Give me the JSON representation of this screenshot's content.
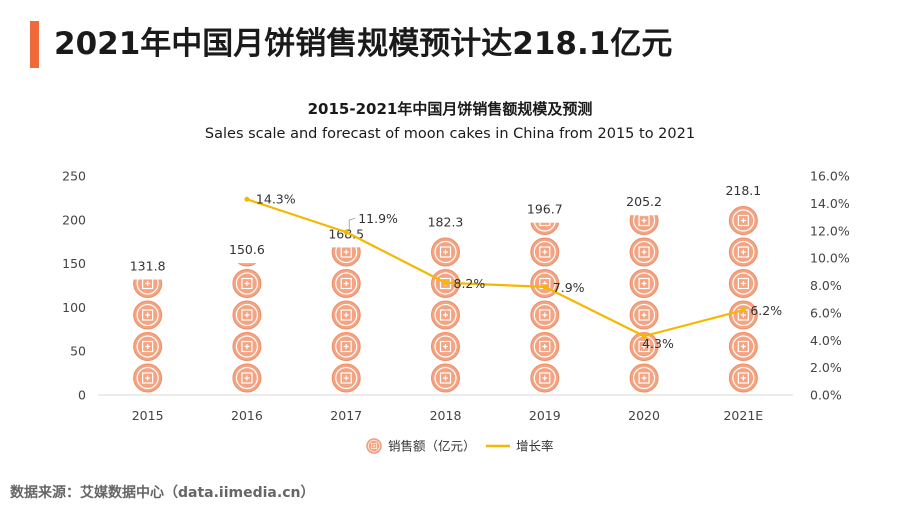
{
  "header": {
    "title": "2021年中国月饼销售规模预计达218.1亿元"
  },
  "chart_data": {
    "type": "bar",
    "title": "2015-2021年中国月饼销售额规模及预测",
    "subtitle": "Sales scale and forecast of moon cakes in China from 2015 to 2021",
    "categories": [
      "2015",
      "2016",
      "2017",
      "2018",
      "2019",
      "2020",
      "2021E"
    ],
    "series": [
      {
        "name": "销售额（亿元）",
        "type": "pictorial-bar",
        "axis": "left",
        "color": "#f2a483",
        "values": [
          131.8,
          150.6,
          168.5,
          182.3,
          196.7,
          205.2,
          218.1
        ],
        "labels": [
          "131.8",
          "150.6",
          "168.5",
          "182.3",
          "196.7",
          "205.2",
          "218.1"
        ]
      },
      {
        "name": "增长率",
        "type": "line",
        "axis": "right",
        "color": "#f5b800",
        "values": [
          null,
          14.3,
          11.9,
          8.2,
          7.9,
          4.3,
          6.2
        ],
        "labels": [
          "",
          "14.3%",
          "11.9%",
          "8.2%",
          "7.9%",
          "4.3%",
          "6.2%"
        ]
      }
    ],
    "y_left": {
      "min": 0,
      "max": 250,
      "ticks": [
        "0",
        "50",
        "100",
        "150",
        "200",
        "250"
      ]
    },
    "y_right": {
      "min": 0,
      "max": 16,
      "ticks": [
        "0.0%",
        "2.0%",
        "4.0%",
        "6.0%",
        "8.0%",
        "10.0%",
        "12.0%",
        "14.0%",
        "16.0%"
      ]
    },
    "legend_position": "bottom",
    "grid": false
  },
  "source": "数据来源：艾媒数据中心（data.iimedia.cn）"
}
